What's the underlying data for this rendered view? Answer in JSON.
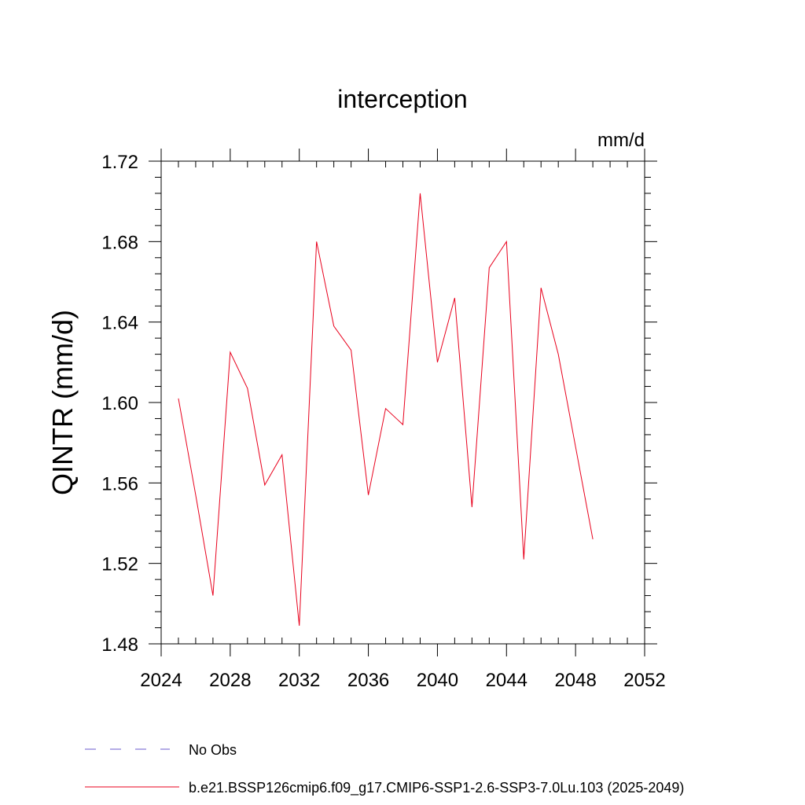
{
  "chart_data": {
    "type": "line",
    "title": "interception",
    "ylabel": "QINTR  (mm/d)",
    "units_label": "mm/d",
    "xlabel": "",
    "xlim": [
      2024,
      2052
    ],
    "ylim": [
      1.48,
      1.72
    ],
    "x_ticks": [
      2024,
      2028,
      2032,
      2036,
      2040,
      2044,
      2048,
      2052
    ],
    "x_tick_labels": [
      "2024",
      "2028",
      "2032",
      "2036",
      "2040",
      "2044",
      "2048",
      "2052"
    ],
    "y_ticks": [
      1.48,
      1.52,
      1.56,
      1.6,
      1.64,
      1.68,
      1.72
    ],
    "y_tick_labels": [
      "1.48",
      "1.52",
      "1.56",
      "1.60",
      "1.64",
      "1.68",
      "1.72"
    ],
    "series": [
      {
        "name": "b.e21.BSSP126cmip6.f09_g17.CMIP6-SSP1-2.6-SSP3-7.0Lu.103 (2025-2049)",
        "color": "#e8001c",
        "x": [
          2025,
          2026,
          2027,
          2028,
          2029,
          2030,
          2031,
          2032,
          2033,
          2034,
          2035,
          2036,
          2037,
          2038,
          2039,
          2040,
          2041,
          2042,
          2043,
          2044,
          2045,
          2046,
          2047,
          2048,
          2049
        ],
        "values": [
          1.602,
          1.554,
          1.504,
          1.625,
          1.607,
          1.559,
          1.574,
          1.489,
          1.68,
          1.638,
          1.626,
          1.554,
          1.597,
          1.589,
          1.704,
          1.62,
          1.652,
          1.548,
          1.667,
          1.68,
          1.522,
          1.657,
          1.624,
          1.578,
          1.532
        ]
      }
    ],
    "legend": [
      {
        "label": "No Obs",
        "color": "#6a5acd",
        "style": "dashed"
      },
      {
        "label": "b.e21.BSSP126cmip6.f09_g17.CMIP6-SSP1-2.6-SSP3-7.0Lu.103 (2025-2049)",
        "color": "#e8001c",
        "style": "solid"
      }
    ]
  }
}
